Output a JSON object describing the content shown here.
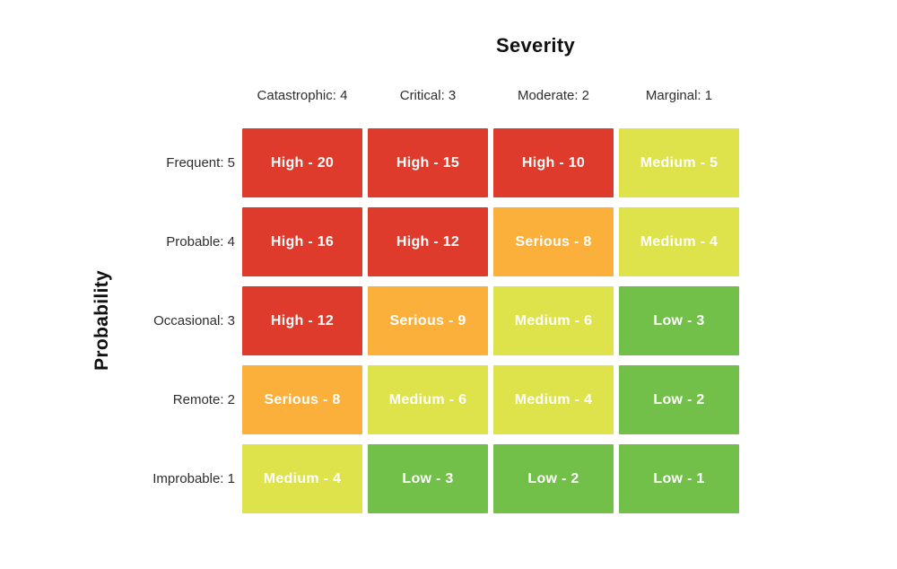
{
  "chart_data": {
    "type": "heatmap",
    "title": "Severity",
    "xlabel": "Severity",
    "ylabel": "Probability",
    "x_categories": [
      "Catastrophic: 4",
      "Critical: 3",
      "Moderate: 2",
      "Marginal: 1"
    ],
    "y_categories": [
      "Frequent: 5",
      "Probable: 4",
      "Occasional: 3",
      "Remote: 2",
      "Improbable: 1"
    ],
    "rows": [
      {
        "label": "Frequent: 5",
        "cells": [
          {
            "label": "High - 20",
            "level": "High",
            "value": 20
          },
          {
            "label": "High - 15",
            "level": "High",
            "value": 15
          },
          {
            "label": "High - 10",
            "level": "High",
            "value": 10
          },
          {
            "label": "Medium - 5",
            "level": "Medium",
            "value": 5
          }
        ]
      },
      {
        "label": "Probable: 4",
        "cells": [
          {
            "label": "High - 16",
            "level": "High",
            "value": 16
          },
          {
            "label": "High - 12",
            "level": "High",
            "value": 12
          },
          {
            "label": "Serious - 8",
            "level": "Serious",
            "value": 8
          },
          {
            "label": "Medium - 4",
            "level": "Medium",
            "value": 4
          }
        ]
      },
      {
        "label": "Occasional: 3",
        "cells": [
          {
            "label": "High - 12",
            "level": "High",
            "value": 12
          },
          {
            "label": "Serious - 9",
            "level": "Serious",
            "value": 9
          },
          {
            "label": "Medium - 6",
            "level": "Medium",
            "value": 6
          },
          {
            "label": "Low - 3",
            "level": "Low",
            "value": 3
          }
        ]
      },
      {
        "label": "Remote: 2",
        "cells": [
          {
            "label": "Serious - 8",
            "level": "Serious",
            "value": 8
          },
          {
            "label": "Medium - 6",
            "level": "Medium",
            "value": 6
          },
          {
            "label": "Medium - 4",
            "level": "Medium",
            "value": 4
          },
          {
            "label": "Low - 2",
            "level": "Low",
            "value": 2
          }
        ]
      },
      {
        "label": "Improbable: 1",
        "cells": [
          {
            "label": "Medium - 4",
            "level": "Medium",
            "value": 4
          },
          {
            "label": "Low - 3",
            "level": "Low",
            "value": 3
          },
          {
            "label": "Low - 2",
            "level": "Low",
            "value": 2
          },
          {
            "label": "Low - 1",
            "level": "Low",
            "value": 1
          }
        ]
      }
    ],
    "level_colors": {
      "High": "#df3b2c",
      "Serious": "#fbb03b",
      "Medium": "#dee24b",
      "Low": "#72bf4a"
    },
    "cell_text_color": "#ffffff",
    "label_text_color": "#2d2d2d",
    "title_text_color": "#111111",
    "legend": "none",
    "grid": "off"
  }
}
